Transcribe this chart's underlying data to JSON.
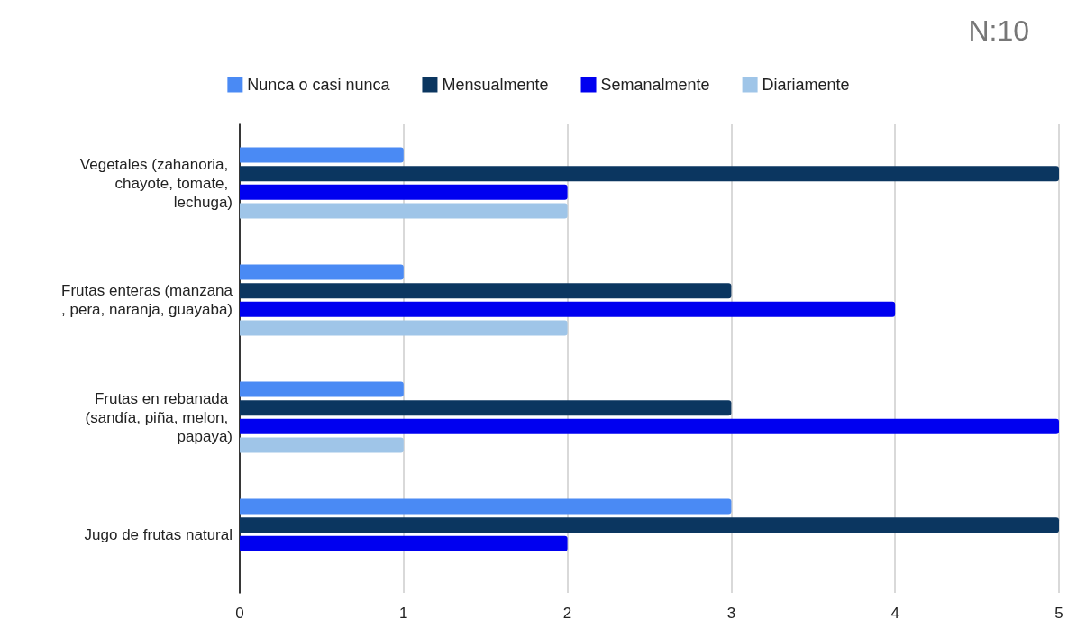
{
  "chart_data": {
    "type": "bar",
    "orientation": "horizontal",
    "title": "N:10",
    "categories": [
      "Vegetales (zahanoria, chayote, tomate, lechuga)",
      "Frutas enteras (manzana, pera, naranja, guayaba)",
      "Frutas en rebanada (sandía, piña, melon, papaya)",
      "Jugo de frutas natural"
    ],
    "series": [
      {
        "name": "Nunca o casi nunca",
        "color": "#4a8af4",
        "values": [
          1,
          1,
          1,
          3
        ]
      },
      {
        "name": "Mensualmente",
        "color": "#0b3660",
        "values": [
          5,
          3,
          3,
          5
        ]
      },
      {
        "name": "Semanalmente",
        "color": "#0000f0",
        "values": [
          2,
          4,
          5,
          2
        ]
      },
      {
        "name": "Diariamente",
        "color": "#9fc5e8",
        "values": [
          2,
          2,
          1,
          0
        ]
      }
    ],
    "xlim": [
      0,
      5
    ],
    "xticks": [
      0,
      1,
      2,
      3,
      4,
      5
    ],
    "grid": "x",
    "legend": "top"
  }
}
